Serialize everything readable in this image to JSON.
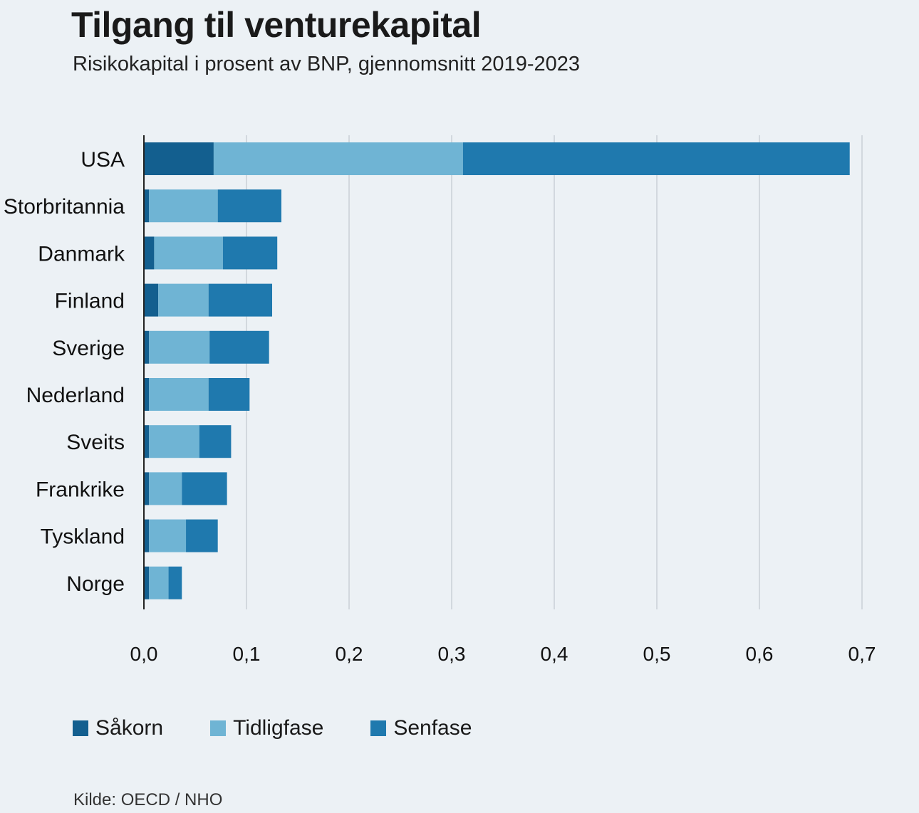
{
  "header": {
    "title": "Tilgang til venturekapital",
    "subtitle": "Risikokapital i prosent av BNP, gjennomsnitt 2019-2023"
  },
  "source": "Kilde: OECD / NHO",
  "colors": {
    "background": "#ecf1f5",
    "grid": "#c9d0d6",
    "axis": "#222222"
  },
  "chart_data": {
    "type": "bar",
    "orientation": "horizontal",
    "stacked": true,
    "title": "Tilgang til venturekapital",
    "subtitle": "Risikokapital i prosent av BNP, gjennomsnitt 2019-2023",
    "categories": [
      "USA",
      "Storbritannia",
      "Danmark",
      "Finland",
      "Sverige",
      "Nederland",
      "Sveits",
      "Frankrike",
      "Tyskland",
      "Norge"
    ],
    "series": [
      {
        "name": "Såkorn",
        "color": "#135f8f",
        "values": [
          0.068,
          0.005,
          0.01,
          0.014,
          0.005,
          0.005,
          0.005,
          0.005,
          0.005,
          0.005
        ]
      },
      {
        "name": "Tidligfase",
        "color": "#6fb4d4",
        "values": [
          0.243,
          0.067,
          0.067,
          0.049,
          0.059,
          0.058,
          0.049,
          0.032,
          0.036,
          0.019
        ]
      },
      {
        "name": "Senfase",
        "color": "#1f79ae",
        "values": [
          0.377,
          0.062,
          0.053,
          0.062,
          0.058,
          0.04,
          0.031,
          0.044,
          0.031,
          0.013
        ]
      }
    ],
    "xlim": [
      0,
      0.7
    ],
    "xticks": [
      0,
      0.1,
      0.2,
      0.3,
      0.4,
      0.5,
      0.6,
      0.7
    ],
    "xtick_labels": [
      "0,0",
      "0,1",
      "0,2",
      "0,3",
      "0,4",
      "0,5",
      "0,6",
      "0,7"
    ],
    "grid": "vertical",
    "legend_position": "bottom-left"
  }
}
